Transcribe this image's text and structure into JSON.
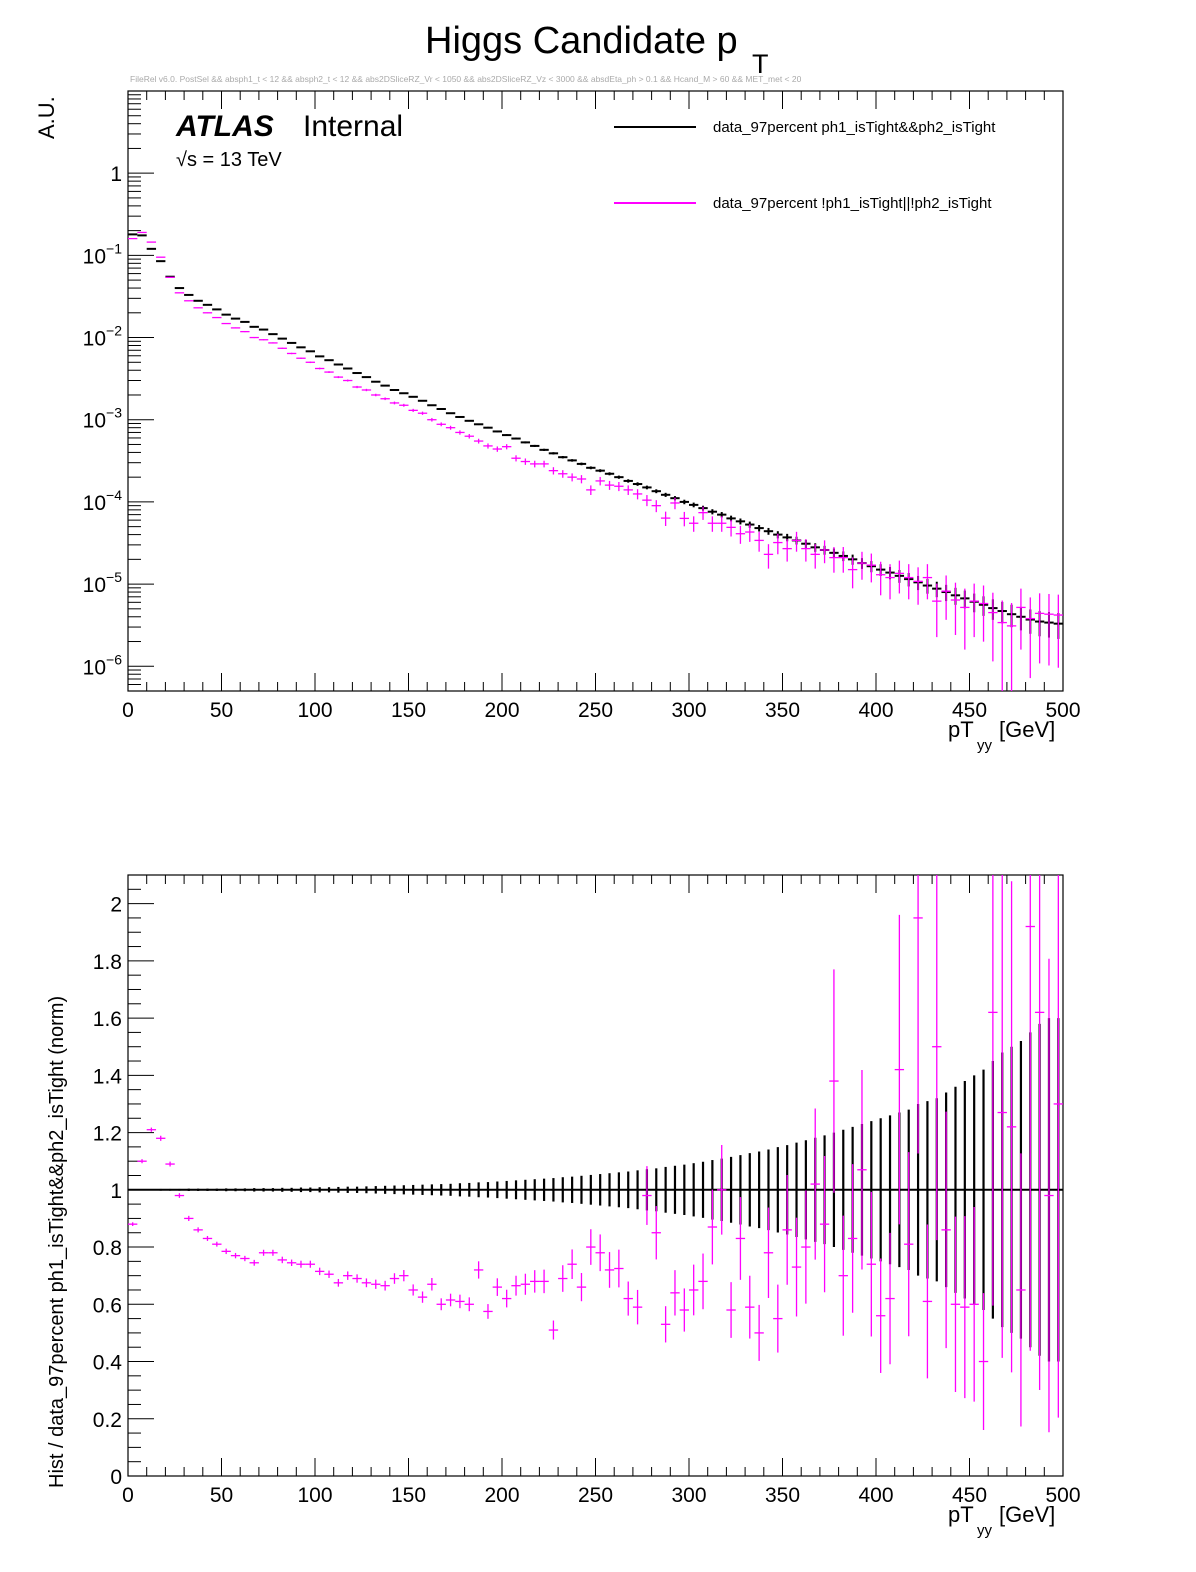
{
  "title": "Higgs Candidate p",
  "title_sub": "T",
  "cut_string": "FileRel v6.0. PostSel &&  absph1_t < 12 && absph2_t < 12 && abs2DSliceRZ_Vr < 1050 && abs2DSliceRZ_Vz < 3000 && absdEta_ph > 0.1 && Hcand_M > 60 && MET_met < 20",
  "atlas": {
    "label": "ATLAS",
    "status": "Internal",
    "energy": "√s = 13 TeV"
  },
  "colors": {
    "nominal": "#000000",
    "alt": "#ff00ff"
  },
  "legend": [
    {
      "label": "data_97percent ph1_isTight&&ph2_isTight",
      "color": "#000000"
    },
    {
      "label": "data_97percent !ph1_isTight||!ph2_isTight",
      "color": "#ff00ff"
    }
  ],
  "chart_data": [
    {
      "type": "scatter",
      "title": "Higgs Candidate pT",
      "ylabel": "A.U.",
      "xlabel_main": "pT",
      "xlabel_sub": "yy",
      "xlabel_unit": "[GeV]",
      "xlim": [
        0,
        500
      ],
      "ylim": [
        5e-07,
        10
      ],
      "yscale": "log",
      "x_ticks": [
        "0",
        "50",
        "100",
        "150",
        "200",
        "250",
        "300",
        "350",
        "400",
        "450",
        "500"
      ],
      "y_ticks": [
        {
          "base": "1",
          "exp": ""
        },
        {
          "base": "10",
          "exp": "−1"
        },
        {
          "base": "10",
          "exp": "−2"
        },
        {
          "base": "10",
          "exp": "−3"
        },
        {
          "base": "10",
          "exp": "−4"
        },
        {
          "base": "10",
          "exp": "−5"
        },
        {
          "base": "10",
          "exp": "−6"
        }
      ],
      "bin_width": 5,
      "series": [
        {
          "name": "data_97percent ph1_isTight&&ph2_isTight",
          "color": "#000000",
          "values": [
            0.18,
            0.175,
            0.12,
            0.085,
            0.055,
            0.04,
            0.033,
            0.028,
            0.025,
            0.022,
            0.019,
            0.017,
            0.0155,
            0.0135,
            0.0125,
            0.011,
            0.0097,
            0.0086,
            0.0076,
            0.0068,
            0.0059,
            0.0053,
            0.0047,
            0.0042,
            0.0037,
            0.0033,
            0.0029,
            0.0026,
            0.0023,
            0.0021,
            0.0019,
            0.0017,
            0.0015,
            0.00135,
            0.0012,
            0.00108,
            0.00097,
            0.00088,
            0.0008,
            0.00072,
            0.00065,
            0.00059,
            0.00053,
            0.00048,
            0.00043,
            0.00039,
            0.00035,
            0.00032,
            0.00029,
            0.00026,
            0.00024,
            0.00022,
            0.0002,
            0.00018,
            0.000165,
            0.00015,
            0.000135,
            0.000122,
            0.000111,
            0.0001,
            9.2e-05,
            8.4e-05,
            7.6e-05,
            7e-05,
            6.3e-05,
            5.8e-05,
            5.3e-05,
            4.8e-05,
            4.4e-05,
            4e-05,
            3.7e-05,
            3.4e-05,
            3.1e-05,
            2.8e-05,
            2.6e-05,
            2.4e-05,
            2.2e-05,
            2e-05,
            1.8e-05,
            1.65e-05,
            1.5e-05,
            1.38e-05,
            1.26e-05,
            1.15e-05,
            1.05e-05,
            9.6e-06,
            8.8e-06,
            8e-06,
            7.3e-06,
            6.7e-06,
            6.1e-06,
            5.6e-06,
            5.1e-06,
            4.7e-06,
            4.3e-06,
            4e-06,
            3.7e-06,
            3.5e-06,
            3.4e-06,
            3.3e-06
          ]
        },
        {
          "name": "data_97percent !ph1_isTight||!ph2_isTight",
          "color": "#ff00ff",
          "values": [
            0.16,
            0.19,
            0.145,
            0.095,
            0.054,
            0.035,
            0.028,
            0.023,
            0.02,
            0.0175,
            0.0148,
            0.0131,
            0.0118,
            0.01,
            0.0094,
            0.0086,
            0.0074,
            0.0064,
            0.0056,
            0.005,
            0.0042,
            0.0038,
            0.0033,
            0.003,
            0.0025,
            0.0023,
            0.002,
            0.0018,
            0.0016,
            0.0015,
            0.0013,
            0.0012,
            0.001,
            0.00088,
            0.0008,
            0.0007,
            0.00063,
            0.00055,
            0.00048,
            0.00044,
            0.00047,
            0.00034,
            0.00031,
            0.00029,
            0.00029,
            0.00024,
            0.00022,
            0.0002,
            0.00019,
            0.00014,
            0.00018,
            0.00016,
            0.000155,
            0.00014,
            0.000125,
            0.000105,
            9e-05,
            6.35e-05,
            9.7e-05,
            6.3e-05,
            5.5e-05,
            7.4e-05,
            5.5e-05,
            5.5e-05,
            4.9e-05,
            4.1e-05,
            4.3e-05,
            3.4e-05,
            2.3e-05,
            3.2e-05,
            2.7e-05,
            3.4e-05,
            2.7e-05,
            2.3e-05,
            2.6e-05,
            2.1e-05,
            2.1e-05,
            1.5e-05,
            1.8e-05,
            1.7e-05,
            1.3e-05,
            1.2e-05,
            1.35e-05,
            1.2e-05,
            1.08e-05,
            1.2e-05,
            6.2e-06,
            8.2e-06,
            6.4e-06,
            5.2e-06,
            6.2e-06,
            5.8e-06,
            4.5e-06,
            3.4e-06,
            3.1e-06,
            5.2e-06,
            3.8e-06,
            4.4e-06,
            4.3e-06,
            4.2e-06
          ]
        }
      ]
    },
    {
      "type": "scatter",
      "ylabel": "Hist / data_97percent ph1_isTight&&ph2_isTight (norm)",
      "xlabel_main": "pT",
      "xlabel_sub": "yy",
      "xlabel_unit": "[GeV]",
      "xlim": [
        0,
        500
      ],
      "ylim": [
        0,
        2.1
      ],
      "x_ticks": [
        "0",
        "50",
        "100",
        "150",
        "200",
        "250",
        "300",
        "350",
        "400",
        "450",
        "500"
      ],
      "y_ticks": [
        "0",
        "0.2",
        "0.4",
        "0.6",
        "0.8",
        "1",
        "1.2",
        "1.4",
        "1.6",
        "1.8",
        "2"
      ],
      "bin_width": 5,
      "reference_line": 1,
      "series": [
        {
          "name": "data_97percent ph1_isTight&&ph2_isTight",
          "color": "#000000",
          "values": [
            1,
            1,
            1,
            1,
            1,
            1,
            1,
            1,
            1,
            1,
            1,
            1,
            1,
            1,
            1,
            1,
            1,
            1,
            1,
            1,
            1,
            1,
            1,
            1,
            1,
            1,
            1,
            1,
            1,
            1,
            1,
            1,
            1,
            1,
            1,
            1,
            1,
            1,
            1,
            1,
            1,
            1,
            1,
            1,
            1,
            1,
            1,
            1,
            1,
            1,
            1,
            1,
            1,
            1,
            1,
            1,
            1,
            1,
            1,
            1,
            1,
            1,
            1,
            1,
            1,
            1,
            1,
            1,
            1,
            1,
            1,
            1,
            1,
            1,
            1,
            1,
            1,
            1,
            1,
            1,
            1,
            1,
            1,
            1,
            1,
            1,
            1,
            1,
            1,
            1,
            1,
            1,
            1,
            1,
            1,
            1,
            1,
            1,
            1,
            1
          ],
          "errors": [
            0.002,
            0.002,
            0.002,
            0.003,
            0.003,
            0.003,
            0.004,
            0.004,
            0.004,
            0.004,
            0.005,
            0.005,
            0.005,
            0.006,
            0.006,
            0.006,
            0.007,
            0.007,
            0.008,
            0.008,
            0.009,
            0.009,
            0.01,
            0.011,
            0.011,
            0.012,
            0.013,
            0.014,
            0.015,
            0.016,
            0.017,
            0.018,
            0.019,
            0.02,
            0.021,
            0.023,
            0.024,
            0.026,
            0.027,
            0.029,
            0.031,
            0.033,
            0.035,
            0.037,
            0.039,
            0.041,
            0.044,
            0.046,
            0.049,
            0.052,
            0.055,
            0.058,
            0.061,
            0.064,
            0.068,
            0.072,
            0.075,
            0.08,
            0.084,
            0.088,
            0.093,
            0.098,
            0.104,
            0.109,
            0.115,
            0.121,
            0.128,
            0.134,
            0.141,
            0.149,
            0.156,
            0.165,
            0.173,
            0.182,
            0.19,
            0.2,
            0.21,
            0.22,
            0.23,
            0.24,
            0.25,
            0.26,
            0.27,
            0.28,
            0.3,
            0.31,
            0.32,
            0.34,
            0.36,
            0.38,
            0.4,
            0.42,
            0.45,
            0.48,
            0.5,
            0.52,
            0.55,
            0.58,
            0.6,
            0.6
          ]
        },
        {
          "name": "data_97percent !ph1_isTight||!ph2_isTight",
          "color": "#ff00ff",
          "values": [
            0.88,
            1.1,
            1.21,
            1.18,
            1.09,
            0.98,
            0.9,
            0.86,
            0.83,
            0.81,
            0.785,
            0.77,
            0.76,
            0.745,
            0.78,
            0.78,
            0.755,
            0.745,
            0.74,
            0.74,
            0.715,
            0.705,
            0.675,
            0.7,
            0.69,
            0.675,
            0.67,
            0.665,
            0.69,
            0.7,
            0.65,
            0.625,
            0.67,
            0.6,
            0.615,
            0.61,
            0.6,
            0.72,
            0.575,
            0.66,
            0.62,
            0.665,
            0.67,
            0.68,
            0.68,
            0.51,
            0.69,
            0.74,
            0.66,
            0.8,
            0.78,
            0.72,
            0.725,
            0.62,
            0.59,
            0.98,
            0.85,
            0.53,
            0.64,
            0.58,
            0.65,
            0.68,
            0.87,
            1.0,
            0.58,
            0.83,
            0.59,
            0.5,
            0.78,
            0.55,
            0.86,
            0.73,
            0.8,
            1.02,
            0.88,
            1.38,
            0.7,
            0.83,
            1.07,
            0.74,
            0.56,
            0.62,
            1.42,
            0.81,
            1.95,
            0.61,
            1.5,
            0.86,
            0.6,
            0.59,
            0.6,
            0.4,
            1.62,
            1.27,
            1.22,
            0.65,
            1.92,
            1.62,
            0.98,
            1.3
          ]
        }
      ]
    }
  ]
}
